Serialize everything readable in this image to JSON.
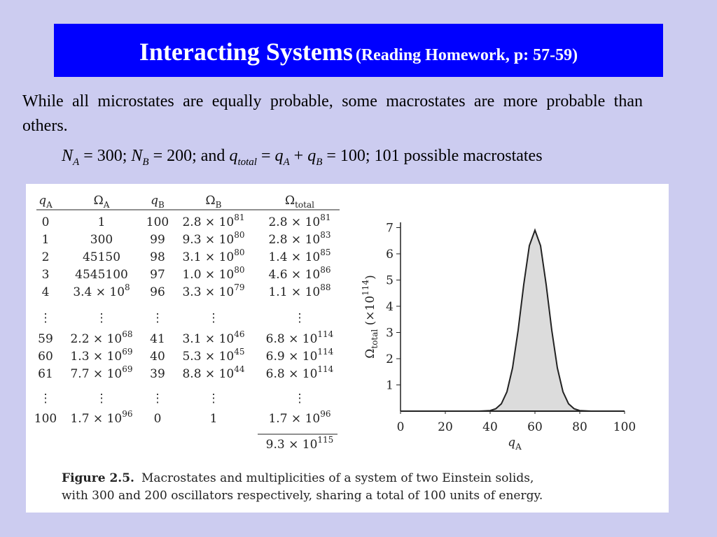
{
  "header": {
    "title": "Interacting Systems",
    "subtitle": "(Reading Homework, p: 57-59)"
  },
  "paragraph": "While all microstates are equally probable, some macrostates are more probable than others.",
  "equation": [
    {
      "t": "N",
      "s": "i"
    },
    {
      "t": "A",
      "s": "sub-i"
    },
    {
      "t": " = 300; "
    },
    {
      "t": "N",
      "s": "i"
    },
    {
      "t": "B",
      "s": "sub-i"
    },
    {
      "t": " = 200; and "
    },
    {
      "t": "q",
      "s": "i"
    },
    {
      "t": "total",
      "s": "sub-i"
    },
    {
      "t": " = "
    },
    {
      "t": "q",
      "s": "i"
    },
    {
      "t": "A",
      "s": "sub-i"
    },
    {
      "t": " + "
    },
    {
      "t": "q",
      "s": "i"
    },
    {
      "t": "B",
      "s": "sub-i"
    },
    {
      "t": " = 100; 101 possible macrostates"
    }
  ],
  "table": {
    "headers": [
      [
        {
          "t": "q",
          "s": "i"
        },
        {
          "t": "A",
          "s": "sub"
        }
      ],
      [
        {
          "t": "Ω"
        },
        {
          "t": "A",
          "s": "sub"
        }
      ],
      [
        {
          "t": "q",
          "s": "i"
        },
        {
          "t": "B",
          "s": "sub"
        }
      ],
      [
        {
          "t": "Ω"
        },
        {
          "t": "B",
          "s": "sub"
        }
      ],
      [
        {
          "t": "Ω"
        },
        {
          "t": "total",
          "s": "sub"
        }
      ]
    ],
    "rows": [
      [
        "0",
        "1",
        "100",
        [
          {
            "t": "2.8 × 10"
          },
          {
            "t": "81",
            "s": "sup"
          }
        ],
        [
          {
            "t": "2.8 × 10"
          },
          {
            "t": "81",
            "s": "sup"
          }
        ]
      ],
      [
        "1",
        "300",
        "99",
        [
          {
            "t": "9.3 × 10"
          },
          {
            "t": "80",
            "s": "sup"
          }
        ],
        [
          {
            "t": "2.8 × 10"
          },
          {
            "t": "83",
            "s": "sup"
          }
        ]
      ],
      [
        "2",
        "45150",
        "98",
        [
          {
            "t": "3.1 × 10"
          },
          {
            "t": "80",
            "s": "sup"
          }
        ],
        [
          {
            "t": "1.4 × 10"
          },
          {
            "t": "85",
            "s": "sup"
          }
        ]
      ],
      [
        "3",
        "4545100",
        "97",
        [
          {
            "t": "1.0 × 10"
          },
          {
            "t": "80",
            "s": "sup"
          }
        ],
        [
          {
            "t": "4.6 × 10"
          },
          {
            "t": "86",
            "s": "sup"
          }
        ]
      ],
      [
        "4",
        [
          {
            "t": "3.4 × 10"
          },
          {
            "t": "8",
            "s": "sup"
          }
        ],
        "96",
        [
          {
            "t": "3.3 × 10"
          },
          {
            "t": "79",
            "s": "sup"
          }
        ],
        [
          {
            "t": "1.1 × 10"
          },
          {
            "t": "88",
            "s": "sup"
          }
        ]
      ],
      [
        "⋮",
        "⋮",
        "⋮",
        "⋮",
        "⋮"
      ],
      [
        "59",
        [
          {
            "t": "2.2 × 10"
          },
          {
            "t": "68",
            "s": "sup"
          }
        ],
        "41",
        [
          {
            "t": "3.1 × 10"
          },
          {
            "t": "46",
            "s": "sup"
          }
        ],
        [
          {
            "t": "6.8 × 10"
          },
          {
            "t": "114",
            "s": "sup"
          }
        ]
      ],
      [
        "60",
        [
          {
            "t": "1.3 × 10"
          },
          {
            "t": "69",
            "s": "sup"
          }
        ],
        "40",
        [
          {
            "t": "5.3 × 10"
          },
          {
            "t": "45",
            "s": "sup"
          }
        ],
        [
          {
            "t": "6.9 × 10"
          },
          {
            "t": "114",
            "s": "sup"
          }
        ]
      ],
      [
        "61",
        [
          {
            "t": "7.7 × 10"
          },
          {
            "t": "69",
            "s": "sup"
          }
        ],
        "39",
        [
          {
            "t": "8.8 × 10"
          },
          {
            "t": "44",
            "s": "sup"
          }
        ],
        [
          {
            "t": "6.8 × 10"
          },
          {
            "t": "114",
            "s": "sup"
          }
        ]
      ],
      [
        "⋮",
        "⋮",
        "⋮",
        "⋮",
        "⋮"
      ],
      [
        "100",
        [
          {
            "t": "1.7 × 10"
          },
          {
            "t": "96",
            "s": "sup"
          }
        ],
        "0",
        "1",
        [
          {
            "t": "1.7 × 10"
          },
          {
            "t": "96",
            "s": "sup"
          }
        ]
      ]
    ],
    "total": [
      {
        "t": "9.3 × 10"
      },
      {
        "t": "115",
        "s": "sup"
      }
    ]
  },
  "chart_data": {
    "type": "area",
    "x": [
      0,
      35,
      40,
      42.5,
      45,
      47.5,
      50,
      52.5,
      55,
      57.5,
      60,
      62.5,
      65,
      67.5,
      70,
      72.5,
      75,
      77.5,
      80,
      85,
      100
    ],
    "values": [
      0,
      0,
      0.02,
      0.09,
      0.28,
      0.74,
      1.65,
      3.09,
      4.83,
      6.31,
      6.9,
      6.31,
      4.83,
      3.09,
      1.65,
      0.74,
      0.28,
      0.09,
      0.02,
      0,
      0
    ],
    "xlim": [
      0,
      100
    ],
    "ylim": [
      0,
      7.2
    ],
    "xticks": [
      0,
      20,
      40,
      60,
      80,
      100
    ],
    "yticks": [
      1,
      2,
      3,
      4,
      5,
      6,
      7
    ],
    "xlabel": [
      {
        "t": "q",
        "s": "i"
      },
      {
        "t": "A",
        "s": "sub"
      }
    ],
    "ylabel": [
      {
        "t": "Ω"
      },
      {
        "t": "total",
        "s": "sub"
      },
      {
        "t": " (×10"
      },
      {
        "t": "114",
        "s": "sup"
      },
      {
        "t": ")"
      }
    ],
    "color": "#dcdcdc",
    "line_color": "#222222"
  },
  "caption": {
    "label": "Figure 2.5.",
    "lines": [
      "Macrostates and multiplicities of a system of two Einstein solids,",
      "with 300 and 200 oscillators respectively, sharing a total of 100 units of energy."
    ]
  }
}
